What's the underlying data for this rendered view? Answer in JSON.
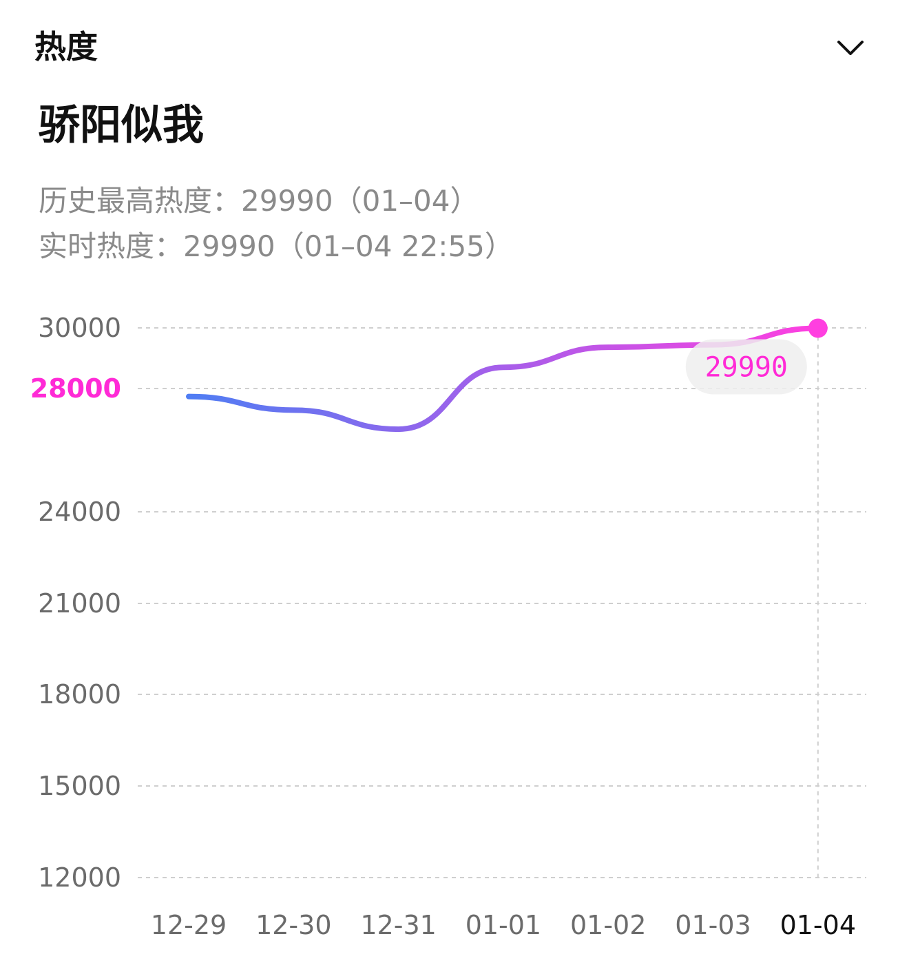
{
  "header": {
    "title": "热度"
  },
  "item": {
    "name": "骄阳似我"
  },
  "stats": {
    "max_line": "历史最高热度：29990（01–04）",
    "realtime_line": "实时热度：29990（01–04 22:55）"
  },
  "colors": {
    "line_start": "#4f7df3",
    "line_end": "#ff3fe0",
    "highlight_tick": "#ff2ad6",
    "tooltip_text": "#ff2ad6",
    "tooltip_bg": "#eeeeee",
    "axis_text": "#6b6b6b",
    "selected_x_label": "#111111",
    "grid": "#cfcfcf"
  },
  "icons": {
    "expand": "chevron-down-icon"
  },
  "chart_data": {
    "type": "line",
    "title": "",
    "xlabel": "",
    "ylabel": "",
    "categories": [
      "12-29",
      "12-30",
      "12-31",
      "01-01",
      "01-02",
      "01-03",
      "01-04"
    ],
    "series": [
      {
        "values": [
          27740,
          27300,
          26680,
          28700,
          29360,
          29440,
          29990
        ]
      }
    ],
    "y_ticks": [
      "30000",
      "28000",
      "24000",
      "21000",
      "18000",
      "15000",
      "12000"
    ],
    "highlight_y_tick": "28000",
    "selected_category": "01-04",
    "tooltip": {
      "label": "29990",
      "value": 29990
    },
    "grid": true,
    "grid_style": "dashed",
    "curve": "smooth",
    "legend": "none"
  }
}
